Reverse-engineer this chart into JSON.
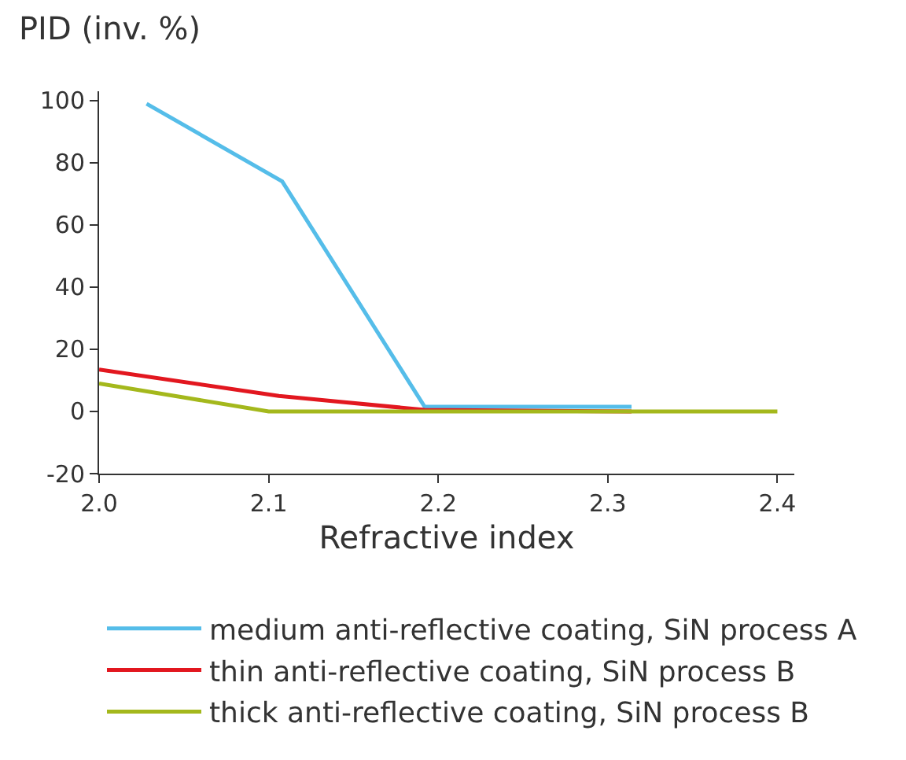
{
  "chart_data": {
    "type": "line",
    "xlabel": "Refractive index",
    "ylabel": "PID (inv. %)",
    "xlim": [
      2.0,
      2.41
    ],
    "xticks": [
      {
        "value": 2.0,
        "label": "2.0"
      },
      2.1,
      2.2,
      2.3,
      2.4
    ],
    "ylim": [
      -20,
      103
    ],
    "yticks": [
      -20,
      0,
      20,
      40,
      60,
      80,
      100
    ],
    "grid": false,
    "legend": "bottom",
    "marker": "none",
    "line_style": "solid",
    "series": [
      {
        "name": "medium anti-reflective coating, SiN process A",
        "color": "#55bde9",
        "x": [
          2.028,
          2.108,
          2.192,
          2.314
        ],
        "values": [
          99,
          74,
          1.5,
          1.5
        ]
      },
      {
        "name": "thin anti-reflective coating, SiN process B",
        "color": "#e2171f",
        "x": [
          2.0,
          2.106,
          2.192,
          2.314
        ],
        "values": [
          13.5,
          5,
          0.5,
          0
        ]
      },
      {
        "name": "thick anti-reflective coating, SiN process B",
        "color": "#a4b81c",
        "x": [
          2.0,
          2.1,
          2.2,
          2.4
        ],
        "values": [
          9,
          0,
          0,
          0
        ]
      }
    ]
  }
}
